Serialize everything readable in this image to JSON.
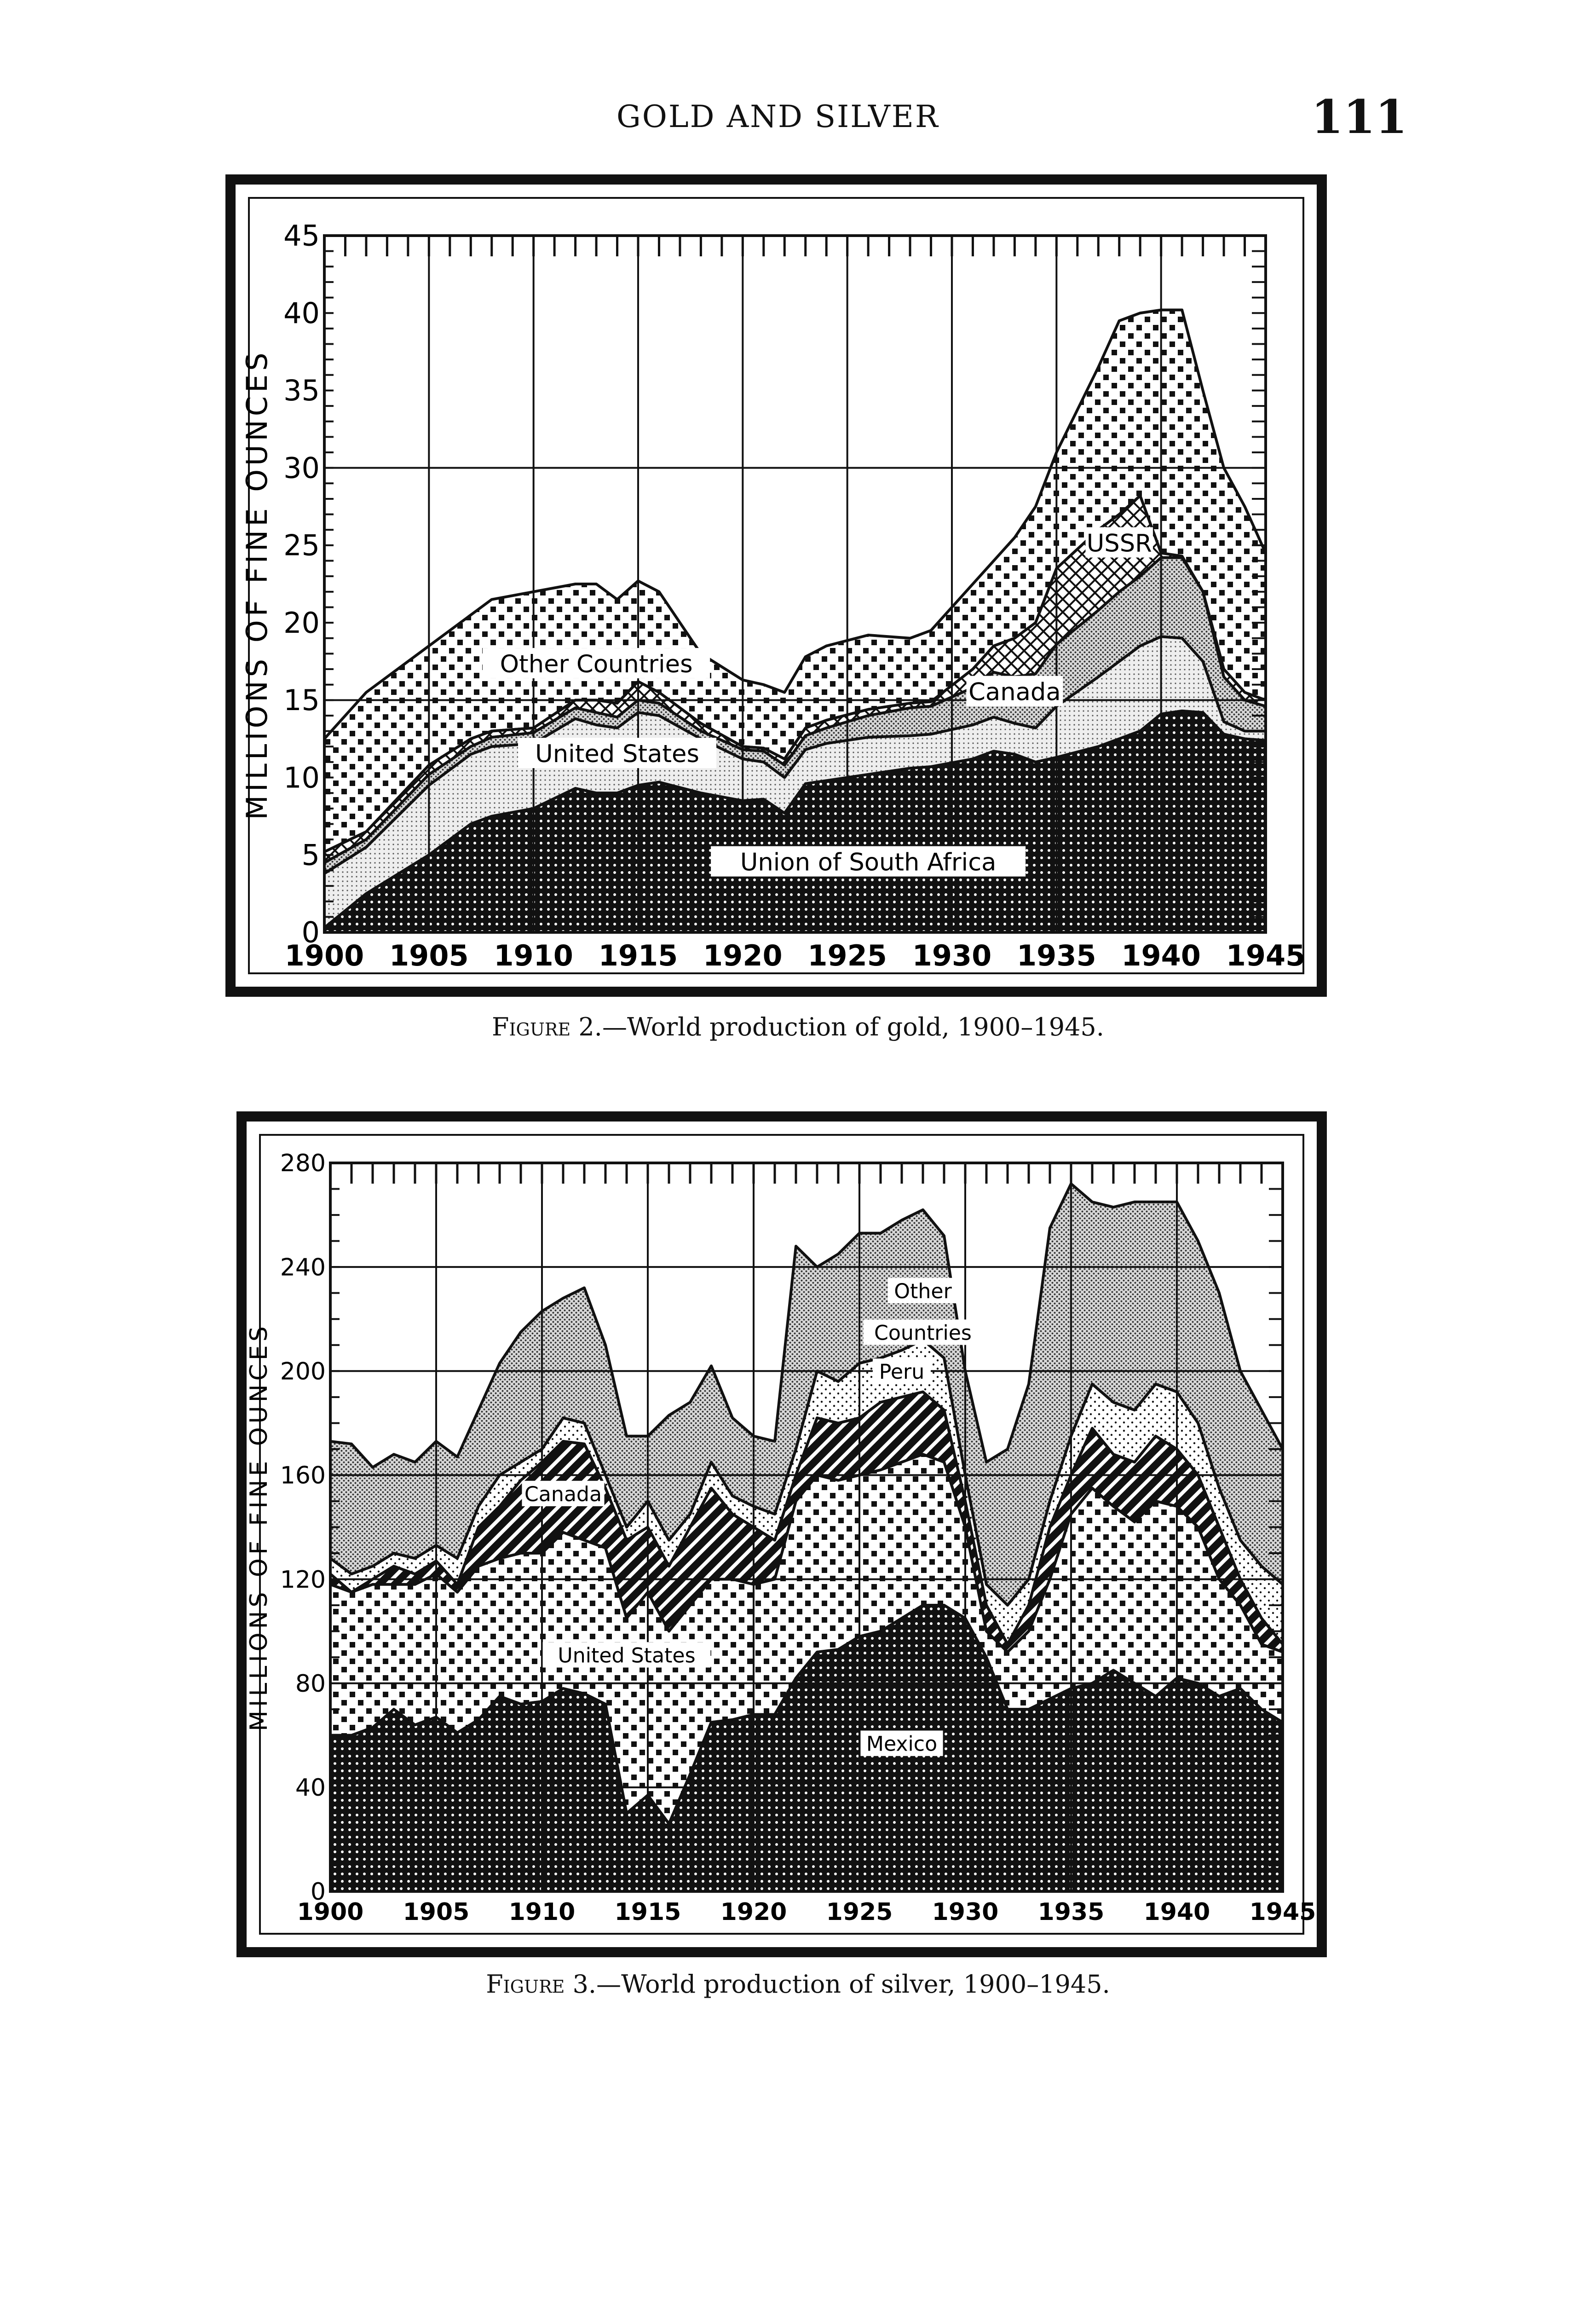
{
  "page": {
    "running_head": "GOLD AND SILVER",
    "page_number": "111"
  },
  "figures": [
    {
      "label": "Figure 2.",
      "caption": "—World production of gold, 1900–1945."
    },
    {
      "label": "Figure 3.",
      "caption": "—World production of silver, 1900–1945."
    }
  ],
  "chart_data": [
    {
      "type": "area",
      "stacked": true,
      "values_are_cumulative_tops": true,
      "title": "World production of gold, 1900–1945",
      "ylabel": "MILLIONS OF FINE OUNCES",
      "xlabel": "",
      "xlim": [
        1900,
        1945
      ],
      "ylim": [
        0,
        45
      ],
      "xticks": [
        "1900",
        "1905",
        "1910",
        "1915",
        "1920",
        "1925",
        "1930",
        "1935",
        "1940",
        "1945"
      ],
      "yticks": [
        "0",
        "5",
        "10",
        "15",
        "20",
        "25",
        "30",
        "35",
        "40",
        "45"
      ],
      "grid": true,
      "x": [
        1900,
        1902,
        1905,
        1907,
        1908,
        1910,
        1912,
        1913,
        1914,
        1915,
        1916,
        1918,
        1920,
        1921,
        1922,
        1923,
        1924,
        1926,
        1928,
        1929,
        1931,
        1932,
        1933,
        1934,
        1935,
        1937,
        1938,
        1939,
        1940,
        1941,
        1942,
        1943,
        1944,
        1945
      ],
      "series": [
        {
          "name": "Union of South Africa",
          "pattern": "dark-dots",
          "values": [
            0.3,
            2.5,
            5,
            7,
            7.5,
            8,
            9.3,
            9,
            9,
            9.5,
            9.7,
            9,
            8.5,
            8.6,
            7.7,
            9.6,
            9.8,
            10.2,
            10.6,
            10.7,
            11.2,
            11.7,
            11.5,
            11,
            11.3,
            12,
            12.5,
            13,
            14.1,
            14.3,
            14.2,
            12.8,
            12.5,
            12.4
          ]
        },
        {
          "name": "United States",
          "pattern": "light-stipple",
          "values": [
            3.8,
            5.5,
            9.5,
            11.5,
            12,
            12.2,
            13.8,
            13.4,
            13.2,
            14.2,
            14,
            12.5,
            11.2,
            11,
            10,
            11.8,
            12.2,
            12.6,
            12.7,
            12.8,
            13.4,
            13.9,
            13.5,
            13.2,
            14.6,
            16.5,
            17.5,
            18.5,
            19.1,
            19,
            17.5,
            13.6,
            13,
            13
          ]
        },
        {
          "name": "Canada",
          "pattern": "gray-stipple",
          "values": [
            4.5,
            6,
            10.2,
            12,
            12.6,
            12.9,
            14.5,
            14.2,
            13.9,
            15,
            14.8,
            13,
            11.8,
            11.7,
            10.8,
            12.7,
            13.2,
            14,
            14.5,
            14.6,
            15.8,
            16.8,
            16.5,
            16.7,
            18.6,
            20.8,
            22,
            23,
            24.2,
            24.2,
            22,
            16.5,
            15,
            14.6
          ]
        },
        {
          "name": "USSR",
          "pattern": "crosshatch",
          "values": [
            5.2,
            6.5,
            10.8,
            12.5,
            13,
            13.2,
            15,
            15,
            14.8,
            16.2,
            15.5,
            13.5,
            12,
            11.9,
            11.2,
            13.2,
            13.7,
            14.4,
            14.8,
            14.9,
            17,
            18.5,
            19,
            20,
            23.5,
            26,
            27,
            28.2,
            24.5,
            24.3,
            22,
            17,
            15.5,
            15
          ]
        },
        {
          "name": "Other Countries",
          "pattern": "checker-dots",
          "values": [
            12.5,
            15.5,
            18.5,
            20.5,
            21.5,
            22,
            22.5,
            22.5,
            21.5,
            22.7,
            22,
            18,
            16.3,
            16,
            15.5,
            17.8,
            18.5,
            19.2,
            19,
            19.5,
            22.5,
            24,
            25.5,
            27.5,
            31,
            36.5,
            39.5,
            40,
            40.2,
            40.2,
            35,
            30,
            27.5,
            24.5
          ]
        }
      ]
    },
    {
      "type": "area",
      "stacked": true,
      "values_are_cumulative_tops": true,
      "title": "World production of silver, 1900–1945",
      "ylabel": "MILLIONS OF FINE OUNCES",
      "xlabel": "",
      "xlim": [
        1900,
        1945
      ],
      "ylim": [
        0,
        280
      ],
      "xticks": [
        "1900",
        "1905",
        "1910",
        "1915",
        "1920",
        "1925",
        "1930",
        "1935",
        "1940",
        "1945"
      ],
      "yticks": [
        "0",
        "40",
        "80",
        "120",
        "160",
        "200",
        "240",
        "280"
      ],
      "grid": true,
      "x": [
        1900,
        1901,
        1902,
        1903,
        1904,
        1905,
        1906,
        1907,
        1908,
        1909,
        1910,
        1911,
        1912,
        1913,
        1914,
        1915,
        1916,
        1917,
        1918,
        1919,
        1920,
        1921,
        1922,
        1923,
        1924,
        1925,
        1926,
        1927,
        1928,
        1929,
        1930,
        1931,
        1932,
        1933,
        1934,
        1935,
        1936,
        1937,
        1938,
        1939,
        1940,
        1941,
        1942,
        1943,
        1944,
        1945
      ],
      "series": [
        {
          "name": "Mexico",
          "pattern": "dark-dots",
          "values": [
            60,
            60,
            63,
            70,
            64,
            67,
            61,
            66,
            75,
            72,
            73,
            78,
            76,
            72,
            30,
            37,
            26,
            45,
            65,
            66,
            68,
            68,
            82,
            92,
            93,
            98,
            100,
            105,
            110,
            110,
            105,
            90,
            70,
            70,
            74,
            78,
            80,
            85,
            80,
            75,
            82,
            80,
            75,
            78,
            70,
            65
          ]
        },
        {
          "name": "United States",
          "pattern": "checker-dots",
          "values": [
            118,
            115,
            118,
            118,
            118,
            122,
            115,
            125,
            128,
            130,
            130,
            138,
            135,
            132,
            105,
            115,
            100,
            110,
            120,
            120,
            118,
            120,
            150,
            160,
            158,
            160,
            162,
            165,
            168,
            165,
            140,
            100,
            92,
            100,
            120,
            145,
            155,
            148,
            142,
            150,
            148,
            140,
            120,
            110,
            95,
            92
          ]
        },
        {
          "name": "Canada",
          "pattern": "stripes",
          "values": [
            122,
            115,
            120,
            125,
            122,
            127,
            118,
            140,
            148,
            158,
            165,
            173,
            172,
            155,
            135,
            140,
            125,
            140,
            155,
            145,
            140,
            135,
            160,
            182,
            180,
            182,
            188,
            190,
            192,
            185,
            150,
            110,
            95,
            110,
            140,
            160,
            178,
            168,
            165,
            175,
            170,
            160,
            140,
            120,
            105,
            95
          ]
        },
        {
          "name": "Peru",
          "pattern": "light-dots",
          "values": [
            128,
            122,
            125,
            130,
            128,
            133,
            128,
            148,
            160,
            165,
            170,
            182,
            180,
            160,
            140,
            150,
            135,
            145,
            165,
            152,
            148,
            145,
            170,
            200,
            196,
            203,
            205,
            208,
            212,
            205,
            160,
            118,
            110,
            120,
            150,
            175,
            195,
            188,
            185,
            195,
            192,
            180,
            155,
            135,
            125,
            118
          ]
        },
        {
          "name": "Other Countries",
          "pattern": "gray-stipple",
          "values": [
            173,
            172,
            163,
            168,
            165,
            173,
            167,
            185,
            203,
            215,
            223,
            228,
            232,
            210,
            175,
            175,
            183,
            188,
            202,
            182,
            175,
            173,
            248,
            240,
            245,
            253,
            253,
            258,
            262,
            252,
            200,
            165,
            170,
            195,
            255,
            272,
            265,
            263,
            265,
            265,
            265,
            250,
            230,
            200,
            185,
            170
          ]
        }
      ]
    }
  ]
}
